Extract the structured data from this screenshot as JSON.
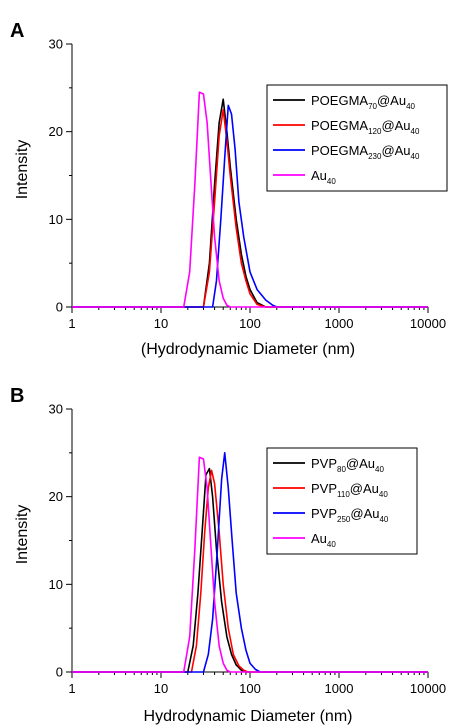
{
  "chart_data": [
    {
      "panel": "A",
      "type": "line",
      "xscale": "log",
      "xlim": [
        1,
        10000
      ],
      "ylim": [
        0,
        30
      ],
      "xticks": [
        1,
        10,
        100,
        1000,
        10000
      ],
      "xtick_labels": [
        "1",
        "10",
        "100",
        "1000",
        "10000"
      ],
      "yticks": [
        0,
        10,
        20,
        30
      ],
      "ytick_labels": [
        "0",
        "10",
        "20",
        "30"
      ],
      "xlabel": "(Hydrodynamic Diameter (nm)",
      "ylabel": "Intensity",
      "legend_position": "top-right",
      "series": [
        {
          "name_base": "POEGMA",
          "name_sub": "70",
          "name_mid": "@Au",
          "name_sub2": "40",
          "color": "#000000",
          "x": [
            1,
            30,
            35,
            40,
            45,
            50,
            55,
            60,
            70,
            80,
            90,
            100,
            120,
            150,
            10000
          ],
          "y": [
            0,
            0,
            5,
            14,
            21,
            23.7,
            20,
            16,
            10,
            6,
            3.5,
            2,
            0.5,
            0,
            0
          ]
        },
        {
          "name_base": "POEGMA",
          "name_sub": "120",
          "name_mid": "@Au",
          "name_sub2": "40",
          "color": "#ff0000",
          "x": [
            1,
            30,
            35,
            40,
            45,
            50,
            55,
            60,
            70,
            80,
            90,
            100,
            120,
            150,
            10000
          ],
          "y": [
            0,
            0,
            4,
            12,
            19.5,
            22.5,
            19,
            15,
            9,
            5,
            3,
            1.5,
            0.3,
            0,
            0
          ]
        },
        {
          "name_base": "POEGMA",
          "name_sub": "230",
          "name_mid": "@Au",
          "name_sub2": "40",
          "color": "#0000ff",
          "x": [
            1,
            38,
            42,
            47,
            52,
            57,
            62,
            68,
            75,
            85,
            100,
            120,
            150,
            180,
            200,
            10000
          ],
          "y": [
            0,
            0,
            3,
            10,
            17,
            23,
            22,
            18,
            12,
            8,
            4,
            2,
            0.8,
            0.2,
            0,
            0
          ]
        },
        {
          "name_base": "Au",
          "name_sub": "40",
          "name_mid": "",
          "name_sub2": "",
          "color": "#ff00ff",
          "x": [
            1,
            18,
            21,
            24,
            27,
            30,
            33,
            36,
            40,
            45,
            50,
            55,
            60,
            10000
          ],
          "y": [
            0,
            0,
            4,
            14,
            24.5,
            24.3,
            21,
            15,
            8,
            3,
            1,
            0.2,
            0,
            0
          ]
        }
      ]
    },
    {
      "panel": "B",
      "type": "line",
      "xscale": "log",
      "xlim": [
        1,
        10000
      ],
      "ylim": [
        0,
        30
      ],
      "xticks": [
        1,
        10,
        100,
        1000,
        10000
      ],
      "xtick_labels": [
        "1",
        "10",
        "100",
        "1000",
        "10000"
      ],
      "yticks": [
        0,
        10,
        20,
        30
      ],
      "ytick_labels": [
        "0",
        "10",
        "20",
        "30"
      ],
      "xlabel": "Hydrodynamic Diameter (nm)",
      "ylabel": "Intensity",
      "legend_position": "top-right",
      "series": [
        {
          "name_base": "PVP",
          "name_sub": "80",
          "name_mid": "@Au",
          "name_sub2": "40",
          "color": "#000000",
          "x": [
            1,
            20,
            23,
            26,
            29,
            32,
            35,
            38,
            42,
            48,
            55,
            62,
            70,
            80,
            90,
            10000
          ],
          "y": [
            0,
            0,
            3,
            9,
            16,
            22.5,
            23.2,
            20,
            14,
            8,
            4,
            2,
            0.8,
            0.2,
            0,
            0
          ]
        },
        {
          "name_base": "PVP",
          "name_sub": "110",
          "name_mid": "@Au",
          "name_sub2": "40",
          "color": "#ff0000",
          "x": [
            1,
            22,
            25,
            28,
            31,
            34,
            37,
            40,
            45,
            50,
            57,
            65,
            75,
            85,
            95,
            10000
          ],
          "y": [
            0,
            0,
            3,
            9,
            16,
            21,
            23,
            21.5,
            16,
            10,
            5,
            2,
            0.7,
            0.2,
            0,
            0
          ]
        },
        {
          "name_base": "PVP",
          "name_sub": "250",
          "name_mid": "@Au",
          "name_sub2": "40",
          "color": "#0000ff",
          "x": [
            1,
            30,
            34,
            38,
            43,
            48,
            52,
            57,
            63,
            70,
            80,
            90,
            100,
            115,
            130,
            10000
          ],
          "y": [
            0,
            0,
            2,
            6,
            14,
            22,
            25,
            21,
            15,
            9,
            5,
            2.5,
            1,
            0.3,
            0,
            0
          ]
        },
        {
          "name_base": "Au",
          "name_sub": "40",
          "name_mid": "",
          "name_sub2": "",
          "color": "#ff00ff",
          "x": [
            1,
            18,
            21,
            24,
            27,
            30,
            33,
            36,
            40,
            45,
            50,
            55,
            60,
            10000
          ],
          "y": [
            0,
            0,
            4,
            14,
            24.5,
            24.3,
            21,
            15,
            8,
            3,
            1,
            0.2,
            0,
            0
          ]
        }
      ]
    }
  ]
}
